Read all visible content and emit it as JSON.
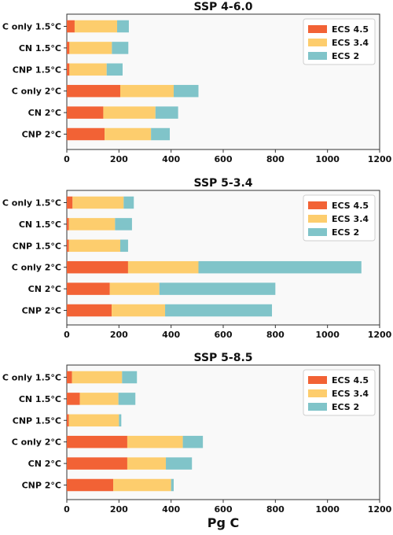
{
  "colors": {
    "ECS 4.5": "#f26235",
    "ECS 3.4": "#fdcd6d",
    "ECS 2": "#80c4c9"
  },
  "x_ticks": [
    "0",
    "200",
    "400",
    "600",
    "800",
    "1000",
    "1200"
  ],
  "xlabel": "Pg C",
  "chart_data": [
    {
      "type": "bar",
      "orientation": "horizontal",
      "stacked": true,
      "title": "SSP 4-6.0",
      "categories": [
        "C only 1.5°C",
        "CN 1.5°C",
        "CNP 1.5°C",
        "C only 2°C",
        "CN 2°C",
        "CNP 2°C"
      ],
      "series": [
        {
          "name": "ECS 4.5",
          "values": [
            30,
            10,
            10,
            205,
            140,
            145
          ]
        },
        {
          "name": "ECS 3.4",
          "values": [
            163,
            163,
            143,
            205,
            200,
            178
          ]
        },
        {
          "name": "ECS 2",
          "values": [
            45,
            63,
            61,
            95,
            87,
            72
          ]
        }
      ],
      "xlim": [
        0,
        1200
      ],
      "xlabel": "",
      "legend": "top-right"
    },
    {
      "type": "bar",
      "orientation": "horizontal",
      "stacked": true,
      "title": "SSP 5-3.4",
      "categories": [
        "C only 1.5°C",
        "CN 1.5°C",
        "CNP 1.5°C",
        "C only 2°C",
        "CN 2°C",
        "CNP 2°C"
      ],
      "series": [
        {
          "name": "ECS 4.5",
          "values": [
            22,
            8,
            8,
            235,
            165,
            172
          ]
        },
        {
          "name": "ECS 3.4",
          "values": [
            196,
            177,
            197,
            270,
            190,
            205
          ]
        },
        {
          "name": "ECS 2",
          "values": [
            39,
            65,
            30,
            625,
            445,
            410
          ]
        }
      ],
      "xlim": [
        0,
        1200
      ],
      "xlabel": "",
      "legend": "top-right"
    },
    {
      "type": "bar",
      "orientation": "horizontal",
      "stacked": true,
      "title": "SSP 5-8.5",
      "categories": [
        "C only 1.5°C",
        "CN 1.5°C",
        "CNP 1.5°C",
        "C only 2°C",
        "CN 2°C",
        "CNP 2°C"
      ],
      "series": [
        {
          "name": "ECS 4.5",
          "values": [
            20,
            50,
            8,
            232,
            232,
            178
          ]
        },
        {
          "name": "ECS 3.4",
          "values": [
            192,
            148,
            192,
            213,
            148,
            222
          ]
        },
        {
          "name": "ECS 2",
          "values": [
            57,
            65,
            9,
            77,
            100,
            10
          ]
        }
      ],
      "xlim": [
        0,
        1200
      ],
      "xlabel": "Pg C",
      "legend": "top-right"
    }
  ]
}
